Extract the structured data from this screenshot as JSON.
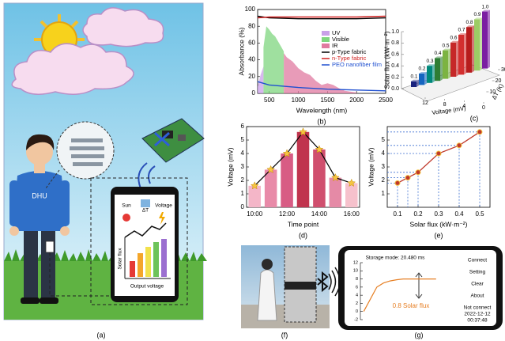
{
  "chart_data": [
    {
      "type": "line",
      "label": "(b)",
      "xlabel": "Wavelength (nm)",
      "ylabel": "Absorbance (%)",
      "xlim": [
        300,
        2500
      ],
      "xticks": [
        500,
        1000,
        1500,
        2000,
        2500
      ],
      "ylim": [
        0,
        100
      ],
      "yticks": [
        0,
        20,
        40,
        60,
        80,
        100
      ],
      "series": [
        {
          "name": "UV",
          "color": "#c9a0e8",
          "area": true,
          "x": [
            300,
            350,
            400
          ],
          "values": [
            8,
            22,
            32
          ]
        },
        {
          "name": "Visible",
          "color": "#7fd67f",
          "area": true,
          "x": [
            400,
            450,
            500,
            550,
            600,
            650,
            700,
            750
          ],
          "values": [
            55,
            80,
            76,
            71,
            68,
            62,
            56,
            50
          ]
        },
        {
          "name": "IR",
          "color": "#e07aa0",
          "area": true,
          "x": [
            750,
            800,
            900,
            1000,
            1100,
            1200,
            1300,
            1400,
            1500,
            1600,
            1700,
            1800,
            1900,
            2000
          ],
          "values": [
            48,
            43,
            38,
            30,
            25,
            22,
            15,
            10,
            12,
            10,
            6,
            3,
            2,
            1
          ]
        },
        {
          "name": "p-Type fabric",
          "color": "#000000",
          "x": [
            300,
            500,
            1000,
            1500,
            2000,
            2500
          ],
          "values": [
            92,
            90,
            89,
            89,
            89,
            90
          ]
        },
        {
          "name": "n-Type fabric",
          "color": "#d02020",
          "x": [
            300,
            500,
            1000,
            1500,
            2000,
            2500
          ],
          "values": [
            90,
            91,
            91,
            91,
            91,
            92
          ]
        },
        {
          "name": "PEO nanofiber film",
          "color": "#2050d0",
          "x": [
            300,
            500,
            1000,
            1500,
            2000,
            2500
          ],
          "values": [
            14,
            10,
            7,
            5,
            4,
            3
          ]
        }
      ]
    },
    {
      "type": "bar3d",
      "label": "(c)",
      "ylabel": "Solar flux (kW·m⁻²)",
      "xlabel": "Voltage (mV)",
      "dlabel": "ΔT (K)",
      "ylim": [
        0,
        1
      ],
      "yticks": [
        {
          "value": 0,
          "label": "0.0"
        },
        0.2,
        0.4,
        0.6,
        0.8,
        {
          "value": 1,
          "label": "1.0"
        }
      ],
      "xlim": [
        0,
        12
      ],
      "xticks": [
        0,
        4,
        8,
        12
      ],
      "dlim": [
        0,
        30
      ],
      "dticks": [
        10,
        20,
        30
      ],
      "values": [
        0.1,
        0.2,
        0.3,
        0.4,
        0.5,
        0.6,
        0.7,
        0.8,
        0.9,
        1.0
      ],
      "value_labels": [
        "0.1",
        "0.2",
        "0.3",
        "0.4",
        "0.5",
        "0.6",
        "0.7",
        "0.8",
        "0.9",
        "1.0"
      ],
      "colors": [
        "#1a237e",
        "#1565c0",
        "#00897b",
        "#2e7d32",
        "#7cb342",
        "#c62828",
        "#d32f2f",
        "#b71c1c",
        "#9ccc65",
        "#7b1fa2"
      ]
    },
    {
      "type": "bar",
      "label": "(d)",
      "xlabel": "Time point",
      "ylabel": "Voltage (mV)",
      "categories": [
        "10:00",
        null,
        "12:00",
        null,
        "14:00",
        null,
        "16:00"
      ],
      "values": [
        1.6,
        2.8,
        4.0,
        5.6,
        4.3,
        2.2,
        1.8
      ],
      "colors": [
        "#f4b6c8",
        "#e88aa8",
        "#d85c84",
        "#c0344e",
        "#d04f6e",
        "#e58aa6",
        "#f6c1cc"
      ],
      "line": true,
      "line_color": "#000000",
      "marker_color": "#f5c542",
      "ylim": [
        0,
        6
      ],
      "yticks": [
        0,
        1,
        2,
        3,
        4,
        5,
        6
      ]
    },
    {
      "type": "scatter",
      "label": "(e)",
      "xlabel": "Solar flux (kW·m⁻²)",
      "ylabel": "Voltage (mV)",
      "x": [
        0.1,
        0.15,
        0.2,
        0.3,
        0.4,
        0.5
      ],
      "values": [
        1.8,
        2.2,
        2.6,
        4.0,
        4.6,
        5.6
      ],
      "color": "#c0392b",
      "line": true,
      "xlim": [
        0.05,
        0.55
      ],
      "xticks": [
        0.1,
        0.2,
        0.3,
        0.4,
        0.5
      ],
      "ylim": [
        0,
        6
      ],
      "yticks": [
        1,
        2,
        3,
        4,
        5
      ]
    },
    {
      "type": "line",
      "categories": [
        null,
        null,
        null,
        null,
        null,
        null,
        null,
        null,
        null,
        null,
        null,
        null
      ],
      "ylim": [
        -2,
        12
      ],
      "yticks": [
        -2,
        0,
        2,
        4,
        6,
        8,
        10,
        12
      ],
      "series": [
        {
          "color": "#e67e22",
          "values": [
            0,
            3,
            6,
            7,
            7.5,
            7.8,
            8,
            8,
            8,
            8,
            8,
            8
          ]
        }
      ]
    }
  ],
  "panels": {
    "a": {
      "label": "(a)",
      "shirt": "DHU",
      "sun": "Sun",
      "delta": "ΔT",
      "voltage": "Voltage",
      "solar_flux": "Solar flux",
      "output_voltage": "Output voltage"
    },
    "f": {
      "label": "(f)"
    },
    "g": {
      "label": "(g)",
      "storage": "Storage mode: 20.480 ms",
      "menu": [
        "Connect",
        "Setting",
        "Clear",
        "About"
      ],
      "status": "Not connect",
      "date": "2022-12-12",
      "time": "00:37:48",
      "reading": "0.8 Solar flux"
    }
  }
}
